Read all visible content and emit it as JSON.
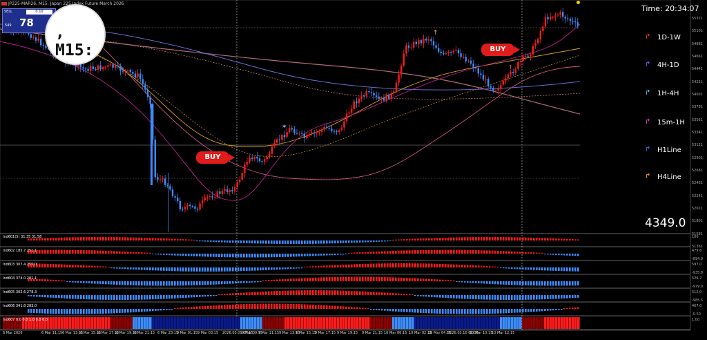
{
  "chart": {
    "symbol": "JP225-MAR26, M15:",
    "description": "Japan 225 Index Future March 2026",
    "time_label": "Time: 20:34:07",
    "price_label": "4349.0",
    "trade_panel": {
      "sell_label": "SELL",
      "lot_value": "0.10",
      "bid_big": "78",
      "bid_small": "549"
    },
    "magnifier_text": ", M15:",
    "buy_labels": [
      "BUY",
      "BUY"
    ],
    "legend": [
      {
        "label": "1D-1W",
        "color": "#ff3b3b",
        "icon": "red-arrow-icon"
      },
      {
        "label": "4H-1D",
        "color": "#7a66ff",
        "icon": "purple-arrow-icon"
      },
      {
        "label": "1H-4H",
        "color": "#44d7ff",
        "icon": "cyan-arrow-icon"
      },
      {
        "label": "15m-1H",
        "color": "#ff3fb6",
        "icon": "pink-arrow-icon"
      },
      {
        "label": "H1Line",
        "color": "#2f7bff",
        "icon": "blue-arrow-icon"
      },
      {
        "label": "H4Line",
        "color": "#ff9a1a",
        "icon": "orange-arrow-icon"
      }
    ],
    "price_axis": [
      "55321",
      "55101",
      "54881",
      "54661",
      "54441",
      "54221",
      "54001",
      "53781",
      "53561",
      "53341",
      "53121",
      "52901",
      "52681",
      "52461",
      "52241",
      "52021",
      "51801",
      "51581",
      "51361"
    ],
    "time_axis": [
      "6 Mar 2026",
      "6 Mar 11:15",
      "6 Mar 13:15",
      "6 Mar 15:15",
      "6 Mar 17:15",
      "6 Mar 19:15",
      "6 Mar 21:15",
      "6 Mar 23:15",
      "9 Mar 01:15",
      "9 Mar 03:15",
      "2026.03.09 07:15",
      "9 Mar 09:15",
      "9 Mar 11:15",
      "9 Mar 13:15",
      "9 Mar 15:15",
      "9 Mar 17:15",
      "9 Mar 19:15",
      "9 Mar 21:15",
      "10 Mar 00:15",
      "10 Mar 02:15",
      "10 Mar 04:15",
      "2026.03.10 06:00",
      "10 Mar 10:15",
      "10 Mar 12:15"
    ]
  },
  "indicators": [
    {
      "label": "Ind601(5) 31.35 31.58",
      "right": "106"
    },
    {
      "label": "Ind602 185.7 251.1",
      "right": "479.6"
    },
    {
      "label": "Ind603 307.4 255.0",
      "right": "597.0"
    },
    {
      "label": "Ind604 374.0 281.1",
      "right": "526.2"
    },
    {
      "label": "Ind605 302.6 278.3",
      "right": "512.0"
    },
    {
      "label": "Ind606 341.8 283.0",
      "right": "467.0"
    },
    {
      "label": "Ind607 0.0 0.0 1.0 0.0 0.0",
      "right": "1.00"
    }
  ],
  "indicator_right_extra": [
    "-894.0",
    "-935.8",
    "-979.0",
    "-985.5",
    "-0.50"
  ],
  "colors": {
    "bull": "#ff1b1b",
    "bear": "#3d8dff",
    "dark_red": "#8d0000",
    "dark_blue": "#0a1a8e"
  }
}
